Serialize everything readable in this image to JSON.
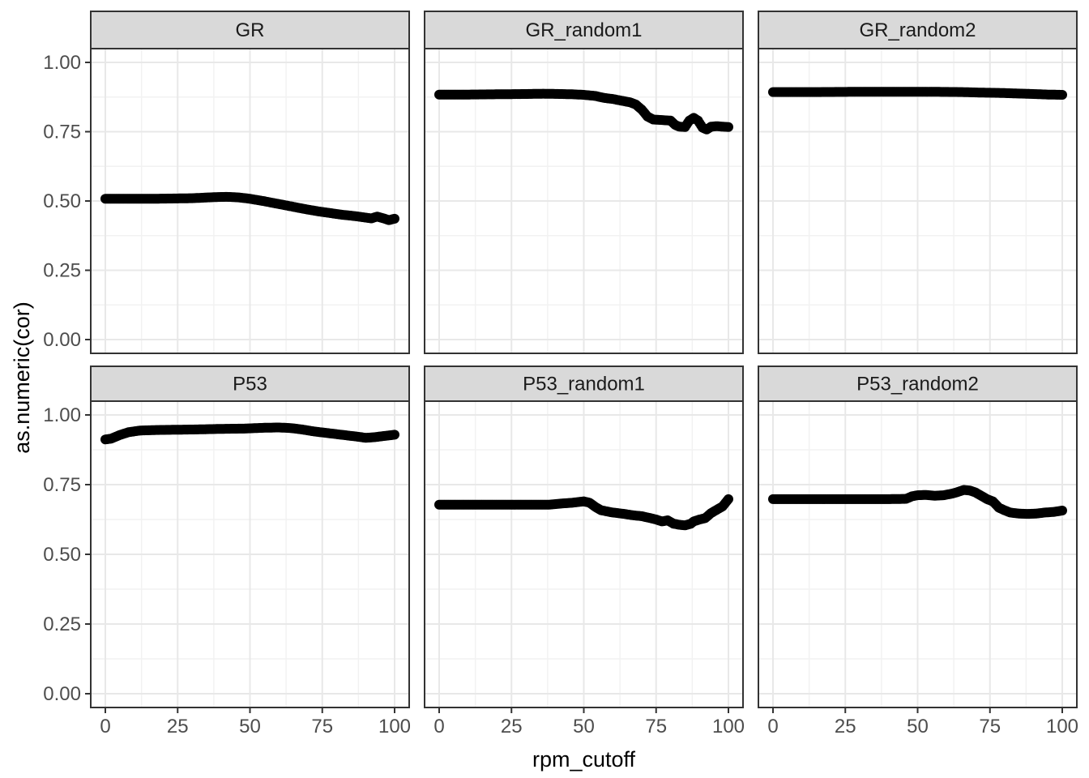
{
  "chart_data": {
    "type": "scatter",
    "title": "",
    "xlabel": "rpm_cutoff",
    "ylabel": "as.numeric(cor)",
    "x_range": [
      0,
      100
    ],
    "y_range": [
      0,
      1
    ],
    "grid": true,
    "legend": "none",
    "facet_layout": {
      "rows": 2,
      "cols": 3
    },
    "x_ticks": [
      {
        "v": 0,
        "label": "0"
      },
      {
        "v": 25,
        "label": "25"
      },
      {
        "v": 50,
        "label": "50"
      },
      {
        "v": 75,
        "label": "75"
      },
      {
        "v": 100,
        "label": "100"
      }
    ],
    "y_ticks": [
      {
        "v": 1.0,
        "label": "1.00"
      },
      {
        "v": 0.75,
        "label": "0.75"
      },
      {
        "v": 0.5,
        "label": "0.50"
      },
      {
        "v": 0.25,
        "label": "0.25"
      },
      {
        "v": 0.0,
        "label": "0.00"
      }
    ],
    "x_minor_ticks": [
      12.5,
      37.5,
      62.5,
      87.5
    ],
    "y_minor_ticks": [
      0.125,
      0.375,
      0.625,
      0.875
    ],
    "point_x_step": 0.5,
    "facets": [
      {
        "label": "GR",
        "row": 0,
        "col": 0,
        "points": [
          [
            0,
            0.508
          ],
          [
            8,
            0.508
          ],
          [
            16,
            0.508
          ],
          [
            24,
            0.509
          ],
          [
            30,
            0.51
          ],
          [
            34,
            0.512
          ],
          [
            38,
            0.514
          ],
          [
            42,
            0.515
          ],
          [
            46,
            0.513
          ],
          [
            50,
            0.508
          ],
          [
            54,
            0.501
          ],
          [
            58,
            0.493
          ],
          [
            62,
            0.485
          ],
          [
            66,
            0.477
          ],
          [
            70,
            0.469
          ],
          [
            74,
            0.462
          ],
          [
            78,
            0.456
          ],
          [
            82,
            0.45
          ],
          [
            85,
            0.447
          ],
          [
            88,
            0.443
          ],
          [
            90,
            0.44
          ],
          [
            92,
            0.437
          ],
          [
            94,
            0.444
          ],
          [
            96,
            0.438
          ],
          [
            98,
            0.431
          ],
          [
            100,
            0.436
          ]
        ]
      },
      {
        "label": "GR_random1",
        "row": 0,
        "col": 1,
        "points": [
          [
            0,
            0.884
          ],
          [
            10,
            0.884
          ],
          [
            20,
            0.885
          ],
          [
            30,
            0.886
          ],
          [
            36,
            0.887
          ],
          [
            42,
            0.886
          ],
          [
            46,
            0.885
          ],
          [
            50,
            0.883
          ],
          [
            54,
            0.879
          ],
          [
            57,
            0.872
          ],
          [
            60,
            0.868
          ],
          [
            63,
            0.862
          ],
          [
            66,
            0.856
          ],
          [
            68,
            0.848
          ],
          [
            70,
            0.83
          ],
          [
            72,
            0.805
          ],
          [
            74,
            0.794
          ],
          [
            77,
            0.792
          ],
          [
            80,
            0.79
          ],
          [
            81.5,
            0.775
          ],
          [
            83,
            0.768
          ],
          [
            85,
            0.767
          ],
          [
            86.5,
            0.79
          ],
          [
            88,
            0.8
          ],
          [
            89.5,
            0.79
          ],
          [
            91,
            0.765
          ],
          [
            92.5,
            0.758
          ],
          [
            94,
            0.768
          ],
          [
            96,
            0.77
          ],
          [
            98,
            0.768
          ],
          [
            100,
            0.767
          ]
        ]
      },
      {
        "label": "GR_random2",
        "row": 0,
        "col": 2,
        "points": [
          [
            0,
            0.893
          ],
          [
            15,
            0.893
          ],
          [
            30,
            0.894
          ],
          [
            45,
            0.894
          ],
          [
            55,
            0.894
          ],
          [
            65,
            0.893
          ],
          [
            72,
            0.891
          ],
          [
            78,
            0.89
          ],
          [
            84,
            0.888
          ],
          [
            90,
            0.886
          ],
          [
            95,
            0.884
          ],
          [
            100,
            0.883
          ]
        ]
      },
      {
        "label": "P53",
        "row": 1,
        "col": 0,
        "points": [
          [
            0,
            0.912
          ],
          [
            2,
            0.915
          ],
          [
            5,
            0.928
          ],
          [
            8,
            0.938
          ],
          [
            12,
            0.944
          ],
          [
            18,
            0.946
          ],
          [
            25,
            0.947
          ],
          [
            32,
            0.948
          ],
          [
            40,
            0.95
          ],
          [
            48,
            0.951
          ],
          [
            55,
            0.954
          ],
          [
            60,
            0.955
          ],
          [
            64,
            0.953
          ],
          [
            68,
            0.948
          ],
          [
            72,
            0.941
          ],
          [
            76,
            0.936
          ],
          [
            80,
            0.931
          ],
          [
            84,
            0.926
          ],
          [
            88,
            0.921
          ],
          [
            90,
            0.918
          ],
          [
            93,
            0.92
          ],
          [
            96,
            0.924
          ],
          [
            100,
            0.929
          ]
        ]
      },
      {
        "label": "P53_random1",
        "row": 1,
        "col": 1,
        "points": [
          [
            0,
            0.678
          ],
          [
            10,
            0.678
          ],
          [
            20,
            0.678
          ],
          [
            30,
            0.678
          ],
          [
            38,
            0.678
          ],
          [
            42,
            0.682
          ],
          [
            46,
            0.685
          ],
          [
            50,
            0.69
          ],
          [
            52,
            0.685
          ],
          [
            54,
            0.67
          ],
          [
            56,
            0.658
          ],
          [
            60,
            0.65
          ],
          [
            64,
            0.645
          ],
          [
            67,
            0.64
          ],
          [
            70,
            0.637
          ],
          [
            73,
            0.63
          ],
          [
            75,
            0.625
          ],
          [
            77,
            0.618
          ],
          [
            79,
            0.622
          ],
          [
            81,
            0.61
          ],
          [
            83,
            0.606
          ],
          [
            85,
            0.604
          ],
          [
            87,
            0.61
          ],
          [
            88,
            0.618
          ],
          [
            90,
            0.625
          ],
          [
            92,
            0.63
          ],
          [
            94,
            0.648
          ],
          [
            96,
            0.66
          ],
          [
            98,
            0.672
          ],
          [
            100,
            0.698
          ]
        ]
      },
      {
        "label": "P53_random2",
        "row": 1,
        "col": 2,
        "points": [
          [
            0,
            0.698
          ],
          [
            10,
            0.698
          ],
          [
            20,
            0.698
          ],
          [
            30,
            0.698
          ],
          [
            40,
            0.698
          ],
          [
            46,
            0.699
          ],
          [
            48,
            0.708
          ],
          [
            50,
            0.712
          ],
          [
            53,
            0.713
          ],
          [
            56,
            0.71
          ],
          [
            59,
            0.712
          ],
          [
            62,
            0.718
          ],
          [
            64,
            0.724
          ],
          [
            66,
            0.731
          ],
          [
            68,
            0.729
          ],
          [
            70,
            0.722
          ],
          [
            72,
            0.71
          ],
          [
            74,
            0.698
          ],
          [
            76,
            0.69
          ],
          [
            78,
            0.668
          ],
          [
            80,
            0.658
          ],
          [
            82,
            0.65
          ],
          [
            85,
            0.646
          ],
          [
            88,
            0.645
          ],
          [
            91,
            0.646
          ],
          [
            94,
            0.65
          ],
          [
            97,
            0.652
          ],
          [
            100,
            0.657
          ]
        ]
      }
    ]
  },
  "style": {
    "background": "#FFFFFF",
    "point_color": "#000000",
    "strip_fill": "#D9D9D9",
    "strip_text_color": "#1A1A1A",
    "panel_border_color": "#333333",
    "grid_major_color": "#E8E8E8",
    "grid_minor_color": "#F2F2F2",
    "tick_mark_color": "#333333",
    "tick_label_color": "#4D4D4D",
    "axis_title_color": "#000000"
  }
}
